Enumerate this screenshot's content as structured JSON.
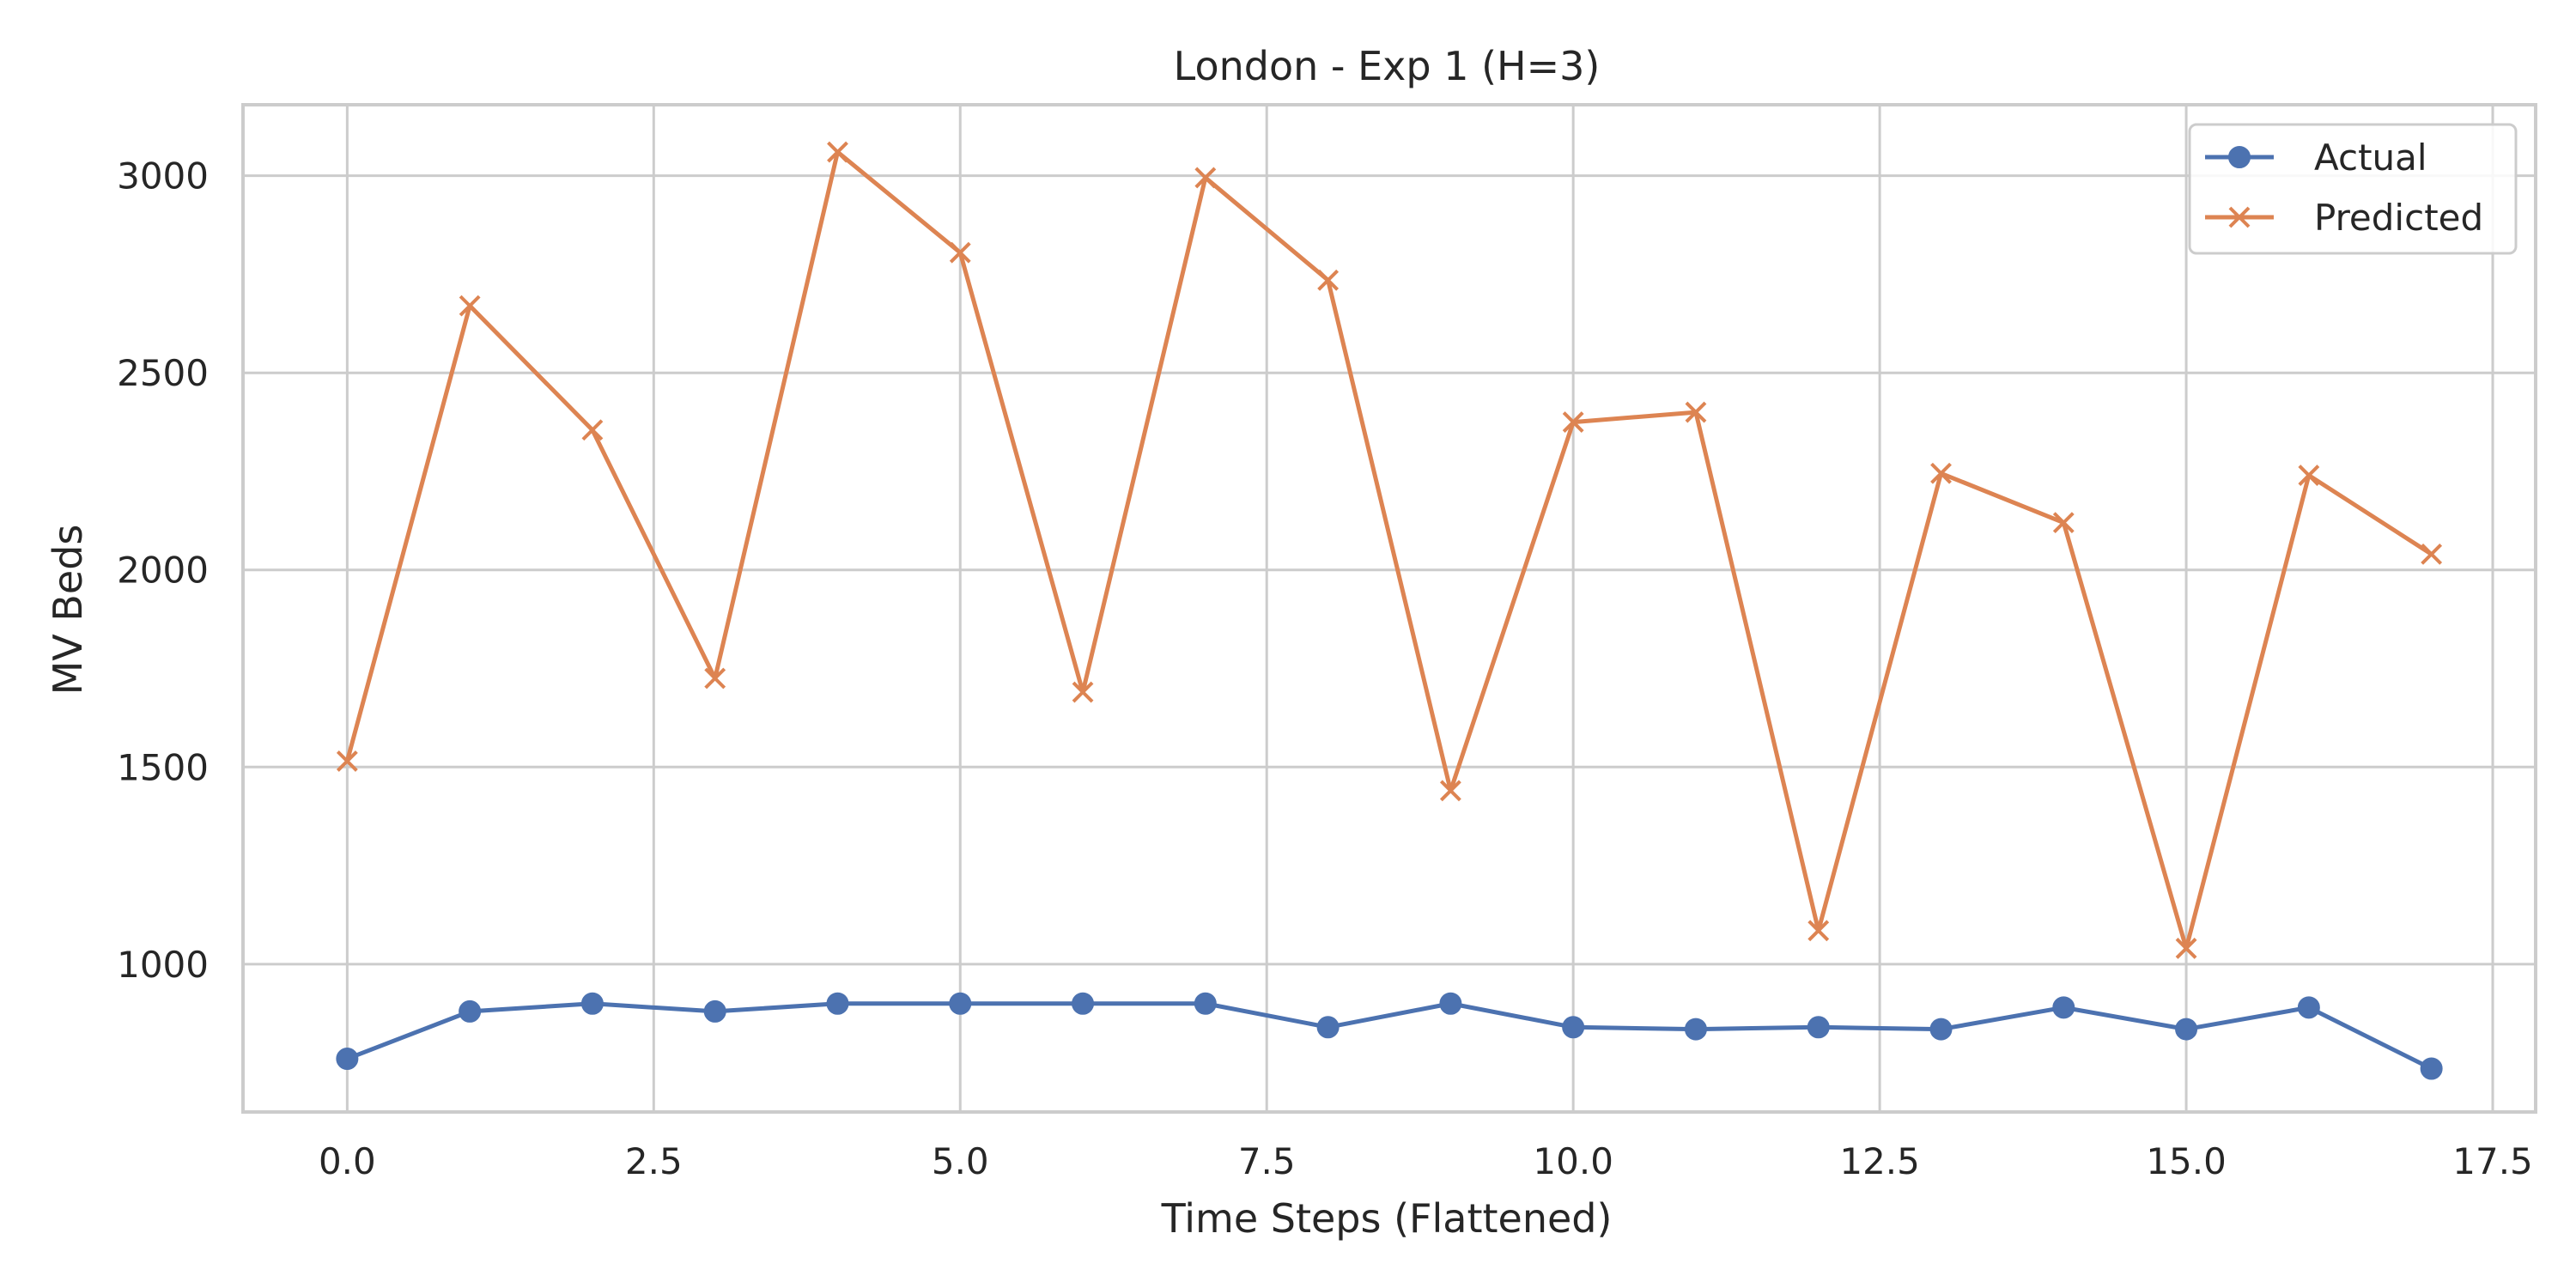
{
  "chart_data": {
    "type": "line",
    "title": "London - Exp 1 (H=3)",
    "xlabel": "Time Steps (Flattened)",
    "ylabel": "MV Beds",
    "xlim": [
      -0.85,
      17.85
    ],
    "ylim": [
      625,
      3180
    ],
    "xticks": [
      0.0,
      2.5,
      5.0,
      7.5,
      10.0,
      12.5,
      15.0,
      17.5
    ],
    "xtick_labels": [
      "0.0",
      "2.5",
      "5.0",
      "7.5",
      "10.0",
      "12.5",
      "15.0",
      "17.5"
    ],
    "yticks": [
      1000,
      1500,
      2000,
      2500,
      3000
    ],
    "ytick_labels": [
      "1000",
      "1500",
      "2000",
      "2500",
      "3000"
    ],
    "grid": true,
    "legend_position": "top-right",
    "x": [
      0,
      1,
      2,
      3,
      4,
      5,
      6,
      7,
      8,
      9,
      10,
      11,
      12,
      13,
      14,
      15,
      16,
      17
    ],
    "series": [
      {
        "name": "Actual",
        "color": "#4c72b0",
        "marker": "circle",
        "values": [
          760,
          880,
          900,
          880,
          900,
          900,
          900,
          900,
          840,
          900,
          840,
          835,
          840,
          835,
          890,
          835,
          890,
          735
        ]
      },
      {
        "name": "Predicted",
        "color": "#dd8452",
        "marker": "x",
        "values": [
          1515,
          2670,
          2355,
          1725,
          3060,
          2805,
          1690,
          2995,
          2735,
          1440,
          2375,
          2400,
          1085,
          2245,
          2120,
          1040,
          2240,
          2040
        ]
      }
    ]
  }
}
